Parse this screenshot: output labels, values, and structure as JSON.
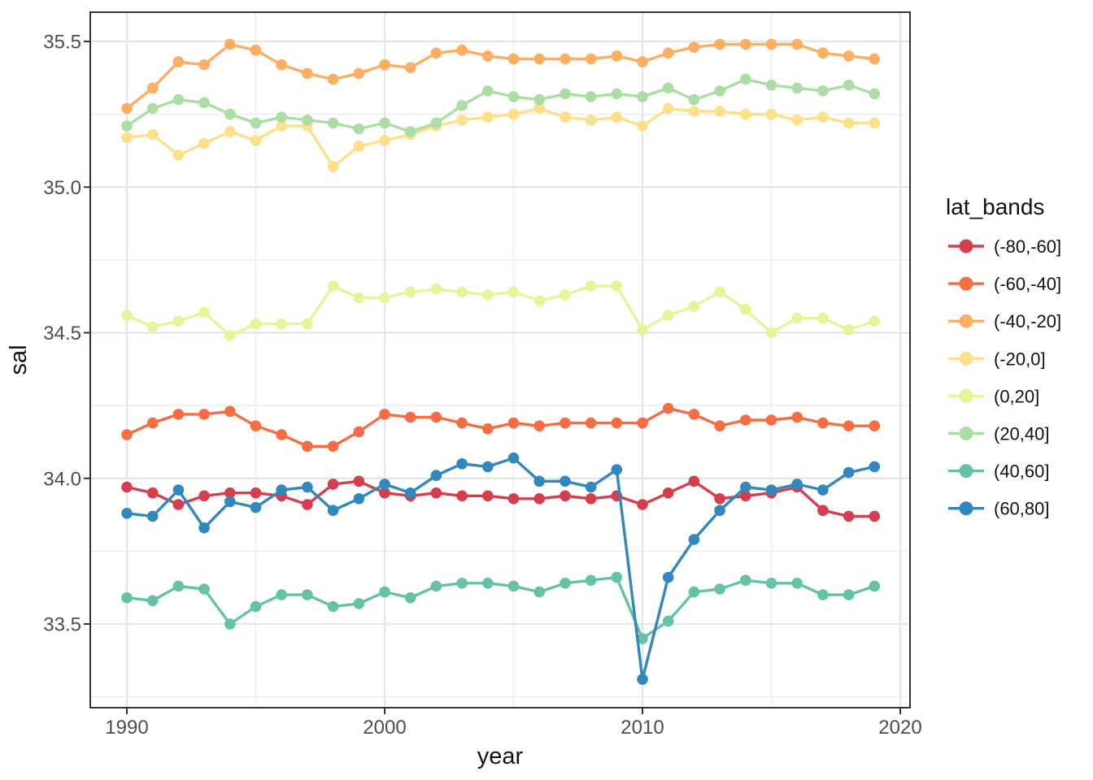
{
  "chart_data": {
    "type": "line",
    "title": "",
    "xlabel": "year",
    "ylabel": "sal",
    "legend_title": "lat_bands",
    "legend_position": "right",
    "grid": true,
    "points": true,
    "xlim": [
      1988.6,
      2020.4
    ],
    "ylim": [
      33.21,
      35.6
    ],
    "x_major_ticks": [
      1990,
      2000,
      2010,
      2020
    ],
    "x_tick_labels": [
      "1990",
      "2000",
      "2010",
      "2020"
    ],
    "x_minor_ticks": [
      1995,
      2005,
      2015
    ],
    "y_major_ticks": [
      33.5,
      34.0,
      34.5,
      35.0,
      35.5
    ],
    "y_tick_labels": [
      "33.5",
      "34.0",
      "34.5",
      "35.0",
      "35.5"
    ],
    "y_minor_ticks": [
      33.25,
      33.75,
      34.25,
      34.75,
      35.25
    ],
    "x": [
      1990,
      1991,
      1992,
      1993,
      1994,
      1995,
      1996,
      1997,
      1998,
      1999,
      2000,
      2001,
      2002,
      2003,
      2004,
      2005,
      2006,
      2007,
      2008,
      2009,
      2010,
      2011,
      2012,
      2013,
      2014,
      2015,
      2016,
      2017,
      2018,
      2019
    ],
    "series": [
      {
        "name": "(-80,-60]",
        "color": "#d53e4f",
        "values": [
          33.97,
          33.95,
          33.91,
          33.94,
          33.95,
          33.95,
          33.94,
          33.91,
          33.98,
          33.99,
          33.95,
          33.94,
          33.95,
          33.94,
          33.94,
          33.93,
          33.93,
          33.94,
          33.93,
          33.94,
          33.91,
          33.95,
          33.99,
          33.93,
          33.94,
          33.95,
          33.97,
          33.89,
          33.87,
          33.87
        ]
      },
      {
        "name": "(-60,-40]",
        "color": "#f46d43",
        "values": [
          34.15,
          34.19,
          34.22,
          34.22,
          34.23,
          34.18,
          34.15,
          34.11,
          34.11,
          34.16,
          34.22,
          34.21,
          34.21,
          34.19,
          34.17,
          34.19,
          34.18,
          34.19,
          34.19,
          34.19,
          34.19,
          34.24,
          34.22,
          34.18,
          34.2,
          34.2,
          34.21,
          34.19,
          34.18,
          34.18
        ]
      },
      {
        "name": "(-40,-20]",
        "color": "#fdae61",
        "values": [
          35.27,
          35.34,
          35.43,
          35.42,
          35.49,
          35.47,
          35.42,
          35.39,
          35.37,
          35.39,
          35.42,
          35.41,
          35.46,
          35.47,
          35.45,
          35.44,
          35.44,
          35.44,
          35.44,
          35.45,
          35.43,
          35.46,
          35.48,
          35.49,
          35.49,
          35.49,
          35.49,
          35.46,
          35.45,
          35.44
        ]
      },
      {
        "name": "(-20,0]",
        "color": "#fee08b",
        "values": [
          35.17,
          35.18,
          35.11,
          35.15,
          35.19,
          35.16,
          35.21,
          35.21,
          35.07,
          35.14,
          35.16,
          35.18,
          35.21,
          35.23,
          35.24,
          35.25,
          35.27,
          35.24,
          35.23,
          35.24,
          35.21,
          35.27,
          35.26,
          35.26,
          35.25,
          35.25,
          35.23,
          35.24,
          35.22,
          35.22
        ]
      },
      {
        "name": "(0,20]",
        "color": "#e6f598",
        "values": [
          34.56,
          34.52,
          34.54,
          34.57,
          34.49,
          34.53,
          34.53,
          34.53,
          34.66,
          34.62,
          34.62,
          34.64,
          34.65,
          34.64,
          34.63,
          34.64,
          34.61,
          34.63,
          34.66,
          34.66,
          34.51,
          34.56,
          34.59,
          34.64,
          34.58,
          34.5,
          34.55,
          34.55,
          34.51,
          34.54
        ]
      },
      {
        "name": "(20,40]",
        "color": "#abdda4",
        "values": [
          35.21,
          35.27,
          35.3,
          35.29,
          35.25,
          35.22,
          35.24,
          35.23,
          35.22,
          35.2,
          35.22,
          35.19,
          35.22,
          35.28,
          35.33,
          35.31,
          35.3,
          35.32,
          35.31,
          35.32,
          35.31,
          35.34,
          35.3,
          35.33,
          35.37,
          35.35,
          35.34,
          35.33,
          35.35,
          35.32
        ]
      },
      {
        "name": "(40,60]",
        "color": "#66c2a5",
        "values": [
          33.59,
          33.58,
          33.63,
          33.62,
          33.5,
          33.56,
          33.6,
          33.6,
          33.56,
          33.57,
          33.61,
          33.59,
          33.63,
          33.64,
          33.64,
          33.63,
          33.61,
          33.64,
          33.65,
          33.66,
          33.45,
          33.51,
          33.61,
          33.62,
          33.65,
          33.64,
          33.64,
          33.6,
          33.6,
          33.63
        ]
      },
      {
        "name": "(60,80]",
        "color": "#3288bd",
        "values": [
          33.88,
          33.87,
          33.96,
          33.83,
          33.92,
          33.9,
          33.96,
          33.97,
          33.89,
          33.93,
          33.98,
          33.95,
          34.01,
          34.05,
          34.04,
          34.07,
          33.99,
          33.99,
          33.97,
          34.03,
          33.31,
          33.66,
          33.79,
          33.89,
          33.97,
          33.96,
          33.98,
          33.96,
          34.02,
          34.04
        ]
      }
    ],
    "style": {
      "background": "#ffffff",
      "panel_border": "#333333",
      "grid_major": "#e5e5e5",
      "grid_minor": "#f0f0f0",
      "tick_color": "#333333",
      "tick_label_color": "#4d4d4d",
      "axis_title_color": "#111111"
    }
  }
}
